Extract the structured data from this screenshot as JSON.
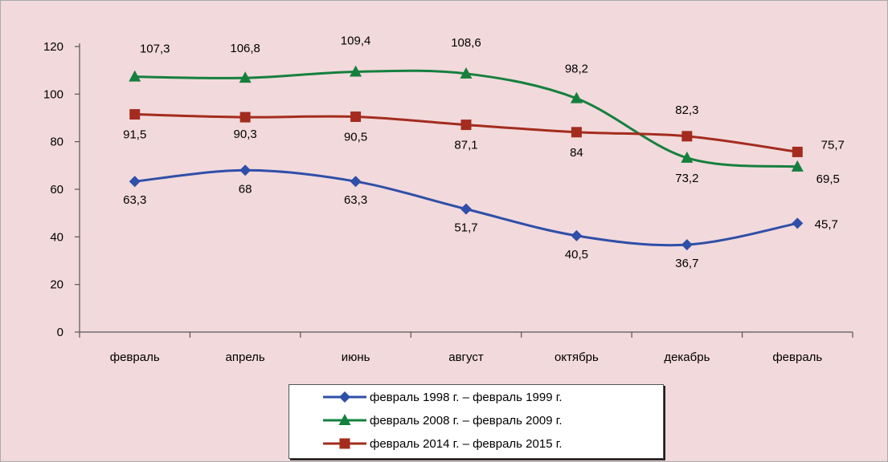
{
  "chart_data": {
    "type": "line",
    "categories": [
      "февраль",
      "апрель",
      "июнь",
      "август",
      "октябрь",
      "декабрь",
      "февраль"
    ],
    "ylim": [
      0,
      120
    ],
    "yticks": [
      0,
      20,
      40,
      60,
      80,
      100,
      120
    ],
    "grid": false,
    "legend_position": "bottom",
    "series": [
      {
        "name": "февраль 1998 г. – февраль 1999 г.",
        "marker": "diamond",
        "color": "#2f4fa8",
        "values": [
          63.3,
          68,
          63.3,
          51.7,
          40.5,
          36.7,
          45.7
        ],
        "labels": [
          "63,3",
          "68",
          "63,3",
          "51,7",
          "40,5",
          "36,7",
          "45,7"
        ]
      },
      {
        "name": "февраль 2008 г. – февраль 2009 г.",
        "marker": "triangle",
        "color": "#15803d",
        "values": [
          107.3,
          106.8,
          109.4,
          108.6,
          98.2,
          73.2,
          69.5
        ],
        "labels": [
          "107,3",
          "106,8",
          "109,4",
          "108,6",
          "98,2",
          "73,2",
          "69,5"
        ]
      },
      {
        "name": "февраль 2014 г. – февраль 2015 г.",
        "marker": "square",
        "color": "#a32c1e",
        "values": [
          91.5,
          90.3,
          90.5,
          87.1,
          84,
          82.3,
          75.7
        ],
        "labels": [
          "91,5",
          "90,3",
          "90,5",
          "87,1",
          "84",
          "82,3",
          "75,7"
        ]
      }
    ]
  }
}
